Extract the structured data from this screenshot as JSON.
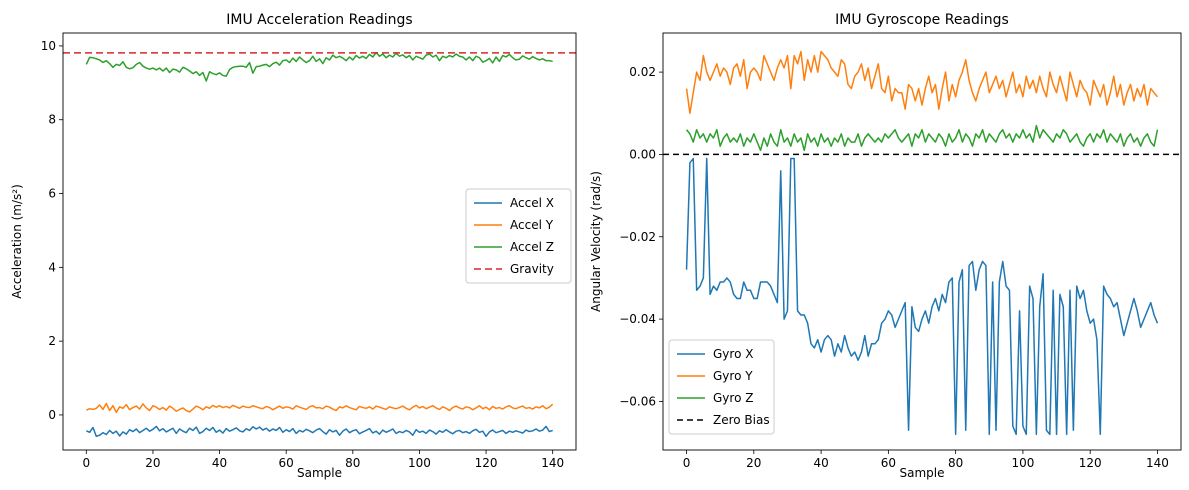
{
  "chart_data": [
    {
      "type": "line",
      "title": "IMU Acceleration Readings",
      "xlabel": "Sample",
      "ylabel": "Acceleration (m/s²)",
      "xlim": [
        -7,
        147
      ],
      "ylim": [
        -0.95,
        10.35
      ],
      "xticks": [
        "0",
        "20",
        "40",
        "60",
        "80",
        "100",
        "120",
        "140"
      ],
      "yticks": [
        "0",
        "2",
        "4",
        "6",
        "8",
        "10"
      ],
      "grid": false,
      "legend_position": "center-right",
      "series": [
        {
          "name": "Accel X",
          "color": "#1f77b4",
          "dash": "",
          "values": [
            -0.43,
            -0.47,
            -0.34,
            -0.58,
            -0.55,
            -0.48,
            -0.53,
            -0.42,
            -0.5,
            -0.44,
            -0.57,
            -0.46,
            -0.52,
            -0.4,
            -0.45,
            -0.38,
            -0.48,
            -0.42,
            -0.36,
            -0.44,
            -0.39,
            -0.31,
            -0.43,
            -0.37,
            -0.46,
            -0.41,
            -0.36,
            -0.5,
            -0.38,
            -0.44,
            -0.48,
            -0.36,
            -0.42,
            -0.33,
            -0.5,
            -0.45,
            -0.36,
            -0.42,
            -0.34,
            -0.47,
            -0.41,
            -0.49,
            -0.37,
            -0.44,
            -0.4,
            -0.35,
            -0.43,
            -0.46,
            -0.37,
            -0.42,
            -0.32,
            -0.38,
            -0.33,
            -0.41,
            -0.36,
            -0.44,
            -0.38,
            -0.42,
            -0.34,
            -0.47,
            -0.4,
            -0.45,
            -0.37,
            -0.5,
            -0.42,
            -0.46,
            -0.39,
            -0.43,
            -0.48,
            -0.41,
            -0.37,
            -0.45,
            -0.52,
            -0.4,
            -0.46,
            -0.42,
            -0.55,
            -0.44,
            -0.38,
            -0.48,
            -0.43,
            -0.4,
            -0.51,
            -0.46,
            -0.42,
            -0.37,
            -0.49,
            -0.44,
            -0.52,
            -0.41,
            -0.47,
            -0.43,
            -0.38,
            -0.5,
            -0.45,
            -0.48,
            -0.42,
            -0.46,
            -0.55,
            -0.4,
            -0.47,
            -0.44,
            -0.5,
            -0.41,
            -0.45,
            -0.52,
            -0.43,
            -0.47,
            -0.4,
            -0.46,
            -0.51,
            -0.44,
            -0.42,
            -0.48,
            -0.45,
            -0.5,
            -0.43,
            -0.39,
            -0.47,
            -0.44,
            -0.58,
            -0.46,
            -0.41,
            -0.48,
            -0.45,
            -0.42,
            -0.5,
            -0.44,
            -0.47,
            -0.43,
            -0.46,
            -0.49,
            -0.41,
            -0.45,
            -0.43,
            -0.38,
            -0.44,
            -0.41,
            -0.31,
            -0.45,
            -0.42
          ]
        },
        {
          "name": "Accel Y",
          "color": "#ff7f0e",
          "dash": "",
          "values": [
            0.13,
            0.17,
            0.15,
            0.18,
            0.27,
            0.15,
            0.31,
            0.12,
            0.25,
            0.07,
            0.22,
            0.18,
            0.28,
            0.14,
            0.2,
            0.24,
            0.16,
            0.3,
            0.19,
            0.12,
            0.25,
            0.21,
            0.15,
            0.2,
            0.13,
            0.24,
            0.18,
            0.1,
            0.15,
            0.19,
            0.12,
            0.08,
            0.16,
            0.24,
            0.2,
            0.14,
            0.22,
            0.18,
            0.26,
            0.21,
            0.25,
            0.2,
            0.23,
            0.19,
            0.26,
            0.22,
            0.18,
            0.24,
            0.21,
            0.2,
            0.25,
            0.22,
            0.19,
            0.17,
            0.23,
            0.2,
            0.14,
            0.19,
            0.24,
            0.18,
            0.22,
            0.2,
            0.16,
            0.25,
            0.21,
            0.18,
            0.15,
            0.22,
            0.25,
            0.19,
            0.2,
            0.17,
            0.24,
            0.21,
            0.16,
            0.12,
            0.22,
            0.19,
            0.25,
            0.2,
            0.17,
            0.14,
            0.23,
            0.2,
            0.18,
            0.22,
            0.16,
            0.24,
            0.21,
            0.18,
            0.15,
            0.22,
            0.19,
            0.17,
            0.2,
            0.24,
            0.18,
            0.14,
            0.21,
            0.26,
            0.19,
            0.23,
            0.17,
            0.21,
            0.25,
            0.19,
            0.15,
            0.22,
            0.18,
            0.12,
            0.2,
            0.24,
            0.19,
            0.16,
            0.22,
            0.2,
            0.14,
            0.19,
            0.25,
            0.17,
            0.21,
            0.14,
            0.23,
            0.18,
            0.2,
            0.16,
            0.22,
            0.25,
            0.19,
            0.17,
            0.21,
            0.24,
            0.18,
            0.2,
            0.16,
            0.22,
            0.19,
            0.25,
            0.17,
            0.21,
            0.29
          ]
        },
        {
          "name": "Accel Z",
          "color": "#2ca02c",
          "dash": "",
          "values": [
            9.5,
            9.69,
            9.68,
            9.65,
            9.62,
            9.55,
            9.6,
            9.52,
            9.42,
            9.5,
            9.47,
            9.57,
            9.42,
            9.38,
            9.41,
            9.5,
            9.55,
            9.45,
            9.4,
            9.37,
            9.4,
            9.35,
            9.4,
            9.32,
            9.4,
            9.28,
            9.37,
            9.35,
            9.29,
            9.42,
            9.38,
            9.32,
            9.25,
            9.3,
            9.2,
            9.28,
            9.05,
            9.3,
            9.25,
            9.22,
            9.27,
            9.2,
            9.18,
            9.36,
            9.42,
            9.44,
            9.45,
            9.45,
            9.42,
            9.55,
            9.26,
            9.44,
            9.45,
            9.48,
            9.5,
            9.44,
            9.52,
            9.56,
            9.48,
            9.6,
            9.62,
            9.55,
            9.67,
            9.58,
            9.7,
            9.62,
            9.55,
            9.6,
            9.72,
            9.58,
            9.65,
            9.52,
            9.68,
            9.62,
            9.75,
            9.68,
            9.72,
            9.67,
            9.6,
            9.7,
            9.62,
            9.74,
            9.67,
            9.72,
            9.66,
            9.77,
            9.7,
            9.82,
            9.72,
            9.78,
            9.68,
            9.75,
            9.7,
            9.8,
            9.72,
            9.76,
            9.68,
            9.74,
            9.62,
            9.72,
            9.68,
            9.64,
            9.75,
            9.78,
            9.7,
            9.75,
            9.6,
            9.72,
            9.68,
            9.74,
            9.7,
            9.78,
            9.72,
            9.7,
            9.62,
            9.7,
            9.6,
            9.72,
            9.68,
            9.56,
            9.6,
            9.66,
            9.54,
            9.7,
            9.58,
            9.74,
            9.7,
            9.77,
            9.68,
            9.62,
            9.64,
            9.73,
            9.68,
            9.64,
            9.71,
            9.66,
            9.62,
            9.65,
            9.6,
            9.6,
            9.58
          ]
        },
        {
          "name": "Gravity",
          "color": "#d62728",
          "dash": "7,4",
          "constant": 9.81
        }
      ]
    },
    {
      "type": "line",
      "title": "IMU Gyroscope Readings",
      "xlabel": "Sample",
      "ylabel": "Angular Velocity (rad/s)",
      "xlim": [
        -7,
        147
      ],
      "ylim": [
        -0.0718,
        0.0295
      ],
      "xticks": [
        "0",
        "20",
        "40",
        "60",
        "80",
        "100",
        "120",
        "140"
      ],
      "yticks": [
        "−0.06",
        "−0.04",
        "−0.02",
        "0.00",
        "0.02"
      ],
      "grid": false,
      "legend_position": "lower-left",
      "series": [
        {
          "name": "Gyro X",
          "color": "#1f77b4",
          "dash": "",
          "values": [
            -0.028,
            -0.002,
            -0.001,
            -0.033,
            -0.032,
            -0.03,
            -0.001,
            -0.034,
            -0.032,
            -0.033,
            -0.031,
            -0.031,
            -0.03,
            -0.031,
            -0.034,
            -0.035,
            -0.035,
            -0.031,
            -0.033,
            -0.033,
            -0.035,
            -0.035,
            -0.031,
            -0.031,
            -0.031,
            -0.032,
            -0.034,
            -0.036,
            -0.004,
            -0.04,
            -0.038,
            -0.001,
            -0.001,
            -0.038,
            -0.039,
            -0.039,
            -0.041,
            -0.046,
            -0.047,
            -0.045,
            -0.048,
            -0.045,
            -0.044,
            -0.045,
            -0.049,
            -0.046,
            -0.048,
            -0.044,
            -0.047,
            -0.049,
            -0.048,
            -0.05,
            -0.048,
            -0.044,
            -0.049,
            -0.046,
            -0.046,
            -0.045,
            -0.041,
            -0.04,
            -0.038,
            -0.039,
            -0.042,
            -0.04,
            -0.038,
            -0.036,
            -0.067,
            -0.037,
            -0.042,
            -0.043,
            -0.04,
            -0.038,
            -0.041,
            -0.037,
            -0.035,
            -0.038,
            -0.034,
            -0.036,
            -0.031,
            -0.03,
            -0.068,
            -0.031,
            -0.028,
            -0.067,
            -0.027,
            -0.026,
            -0.033,
            -0.028,
            -0.026,
            -0.027,
            -0.068,
            -0.031,
            -0.067,
            -0.031,
            -0.026,
            -0.032,
            -0.033,
            -0.066,
            -0.068,
            -0.038,
            -0.066,
            -0.068,
            -0.032,
            -0.035,
            -0.068,
            -0.037,
            -0.029,
            -0.067,
            -0.068,
            -0.033,
            -0.068,
            -0.034,
            -0.037,
            -0.068,
            -0.033,
            -0.067,
            -0.032,
            -0.035,
            -0.033,
            -0.038,
            -0.041,
            -0.04,
            -0.045,
            -0.068,
            -0.032,
            -0.034,
            -0.035,
            -0.037,
            -0.036,
            -0.04,
            -0.044,
            -0.041,
            -0.038,
            -0.035,
            -0.038,
            -0.042,
            -0.04,
            -0.038,
            -0.036,
            -0.039,
            -0.041
          ]
        },
        {
          "name": "Gyro Y",
          "color": "#ff7f0e",
          "dash": "",
          "values": [
            0.016,
            0.01,
            0.015,
            0.02,
            0.018,
            0.024,
            0.02,
            0.018,
            0.02,
            0.022,
            0.019,
            0.021,
            0.02,
            0.017,
            0.021,
            0.022,
            0.019,
            0.023,
            0.016,
            0.02,
            0.021,
            0.02,
            0.018,
            0.024,
            0.022,
            0.02,
            0.018,
            0.021,
            0.023,
            0.021,
            0.024,
            0.016,
            0.024,
            0.022,
            0.025,
            0.018,
            0.023,
            0.02,
            0.024,
            0.02,
            0.025,
            0.024,
            0.023,
            0.021,
            0.02,
            0.019,
            0.023,
            0.022,
            0.017,
            0.016,
            0.019,
            0.02,
            0.022,
            0.018,
            0.021,
            0.016,
            0.019,
            0.022,
            0.016,
            0.015,
            0.019,
            0.013,
            0.016,
            0.015,
            0.015,
            0.011,
            0.017,
            0.016,
            0.013,
            0.016,
            0.012,
            0.016,
            0.019,
            0.015,
            0.017,
            0.011,
            0.016,
            0.02,
            0.013,
            0.017,
            0.014,
            0.018,
            0.02,
            0.023,
            0.018,
            0.015,
            0.013,
            0.016,
            0.018,
            0.02,
            0.015,
            0.017,
            0.019,
            0.016,
            0.018,
            0.014,
            0.017,
            0.02,
            0.015,
            0.017,
            0.014,
            0.019,
            0.016,
            0.018,
            0.015,
            0.019,
            0.016,
            0.014,
            0.02,
            0.017,
            0.015,
            0.019,
            0.016,
            0.013,
            0.02,
            0.017,
            0.014,
            0.018,
            0.016,
            0.015,
            0.012,
            0.018,
            0.016,
            0.014,
            0.017,
            0.012,
            0.015,
            0.019,
            0.014,
            0.017,
            0.012,
            0.015,
            0.017,
            0.013,
            0.016,
            0.014,
            0.017,
            0.012,
            0.016,
            0.015,
            0.014
          ]
        },
        {
          "name": "Gyro Z",
          "color": "#2ca02c",
          "dash": "",
          "values": [
            0.006,
            0.005,
            0.003,
            0.006,
            0.004,
            0.005,
            0.003,
            0.005,
            0.004,
            0.006,
            0.002,
            0.004,
            0.005,
            0.003,
            0.004,
            0.003,
            0.005,
            0.002,
            0.004,
            0.003,
            0.005,
            0.003,
            0.001,
            0.004,
            0.002,
            0.005,
            0.003,
            0.002,
            0.006,
            0.003,
            0.004,
            0.002,
            0.005,
            0.003,
            0.004,
            0.001,
            0.005,
            0.003,
            0.004,
            0.002,
            0.005,
            0.003,
            0.004,
            0.002,
            0.004,
            0.003,
            0.005,
            0.002,
            0.004,
            0.003,
            0.003,
            0.005,
            0.002,
            0.004,
            0.005,
            0.004,
            0.003,
            0.004,
            0.003,
            0.005,
            0.004,
            0.005,
            0.006,
            0.004,
            0.003,
            0.004,
            0.005,
            0.002,
            0.005,
            0.004,
            0.006,
            0.003,
            0.005,
            0.004,
            0.003,
            0.005,
            0.004,
            0.002,
            0.005,
            0.003,
            0.004,
            0.006,
            0.003,
            0.005,
            0.004,
            0.002,
            0.005,
            0.004,
            0.006,
            0.003,
            0.005,
            0.004,
            0.003,
            0.005,
            0.006,
            0.004,
            0.005,
            0.003,
            0.005,
            0.004,
            0.006,
            0.004,
            0.005,
            0.003,
            0.007,
            0.004,
            0.006,
            0.005,
            0.004,
            0.003,
            0.005,
            0.004,
            0.006,
            0.005,
            0.003,
            0.004,
            0.005,
            0.003,
            0.002,
            0.004,
            0.005,
            0.003,
            0.005,
            0.004,
            0.006,
            0.003,
            0.005,
            0.004,
            0.003,
            0.005,
            0.002,
            0.004,
            0.005,
            0.003,
            0.004,
            0.002,
            0.004,
            0.005,
            0.003,
            0.002,
            0.006
          ]
        },
        {
          "name": "Zero Bias",
          "color": "#000000",
          "dash": "6,4",
          "constant": 0.0
        }
      ]
    }
  ]
}
